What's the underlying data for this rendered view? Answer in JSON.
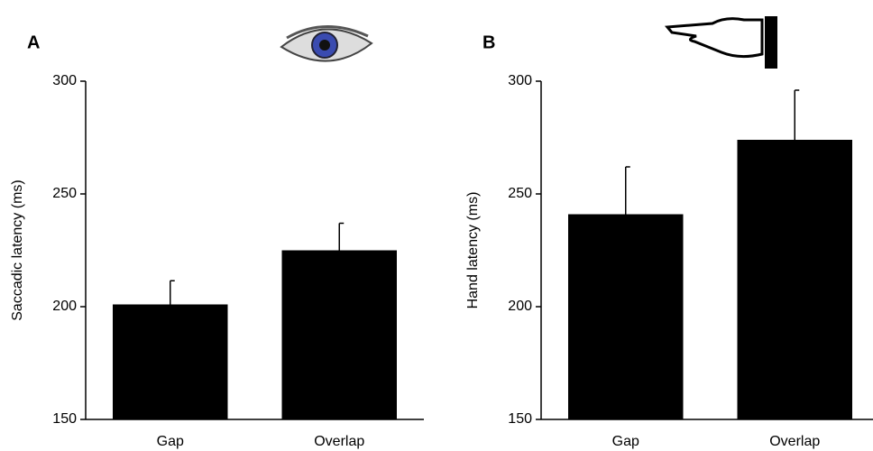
{
  "chart_data": [
    {
      "type": "bar",
      "label": "A",
      "ylabel": "Saccadic latency (ms)",
      "categories": [
        "Gap",
        "Overlap"
      ],
      "values": [
        201,
        225
      ],
      "errors": [
        10.5,
        12
      ],
      "color": "#000000",
      "ylim": [
        150,
        300
      ],
      "yticks": [
        150,
        200,
        250,
        300
      ]
    },
    {
      "type": "bar",
      "label": "B",
      "ylabel": "Hand latency (ms)",
      "categories": [
        "Gap",
        "Overlap"
      ],
      "values": [
        241,
        274
      ],
      "errors": [
        21,
        22
      ],
      "color": "#000000",
      "ylim": [
        150,
        300
      ],
      "yticks": [
        150,
        200,
        250,
        300
      ]
    }
  ]
}
